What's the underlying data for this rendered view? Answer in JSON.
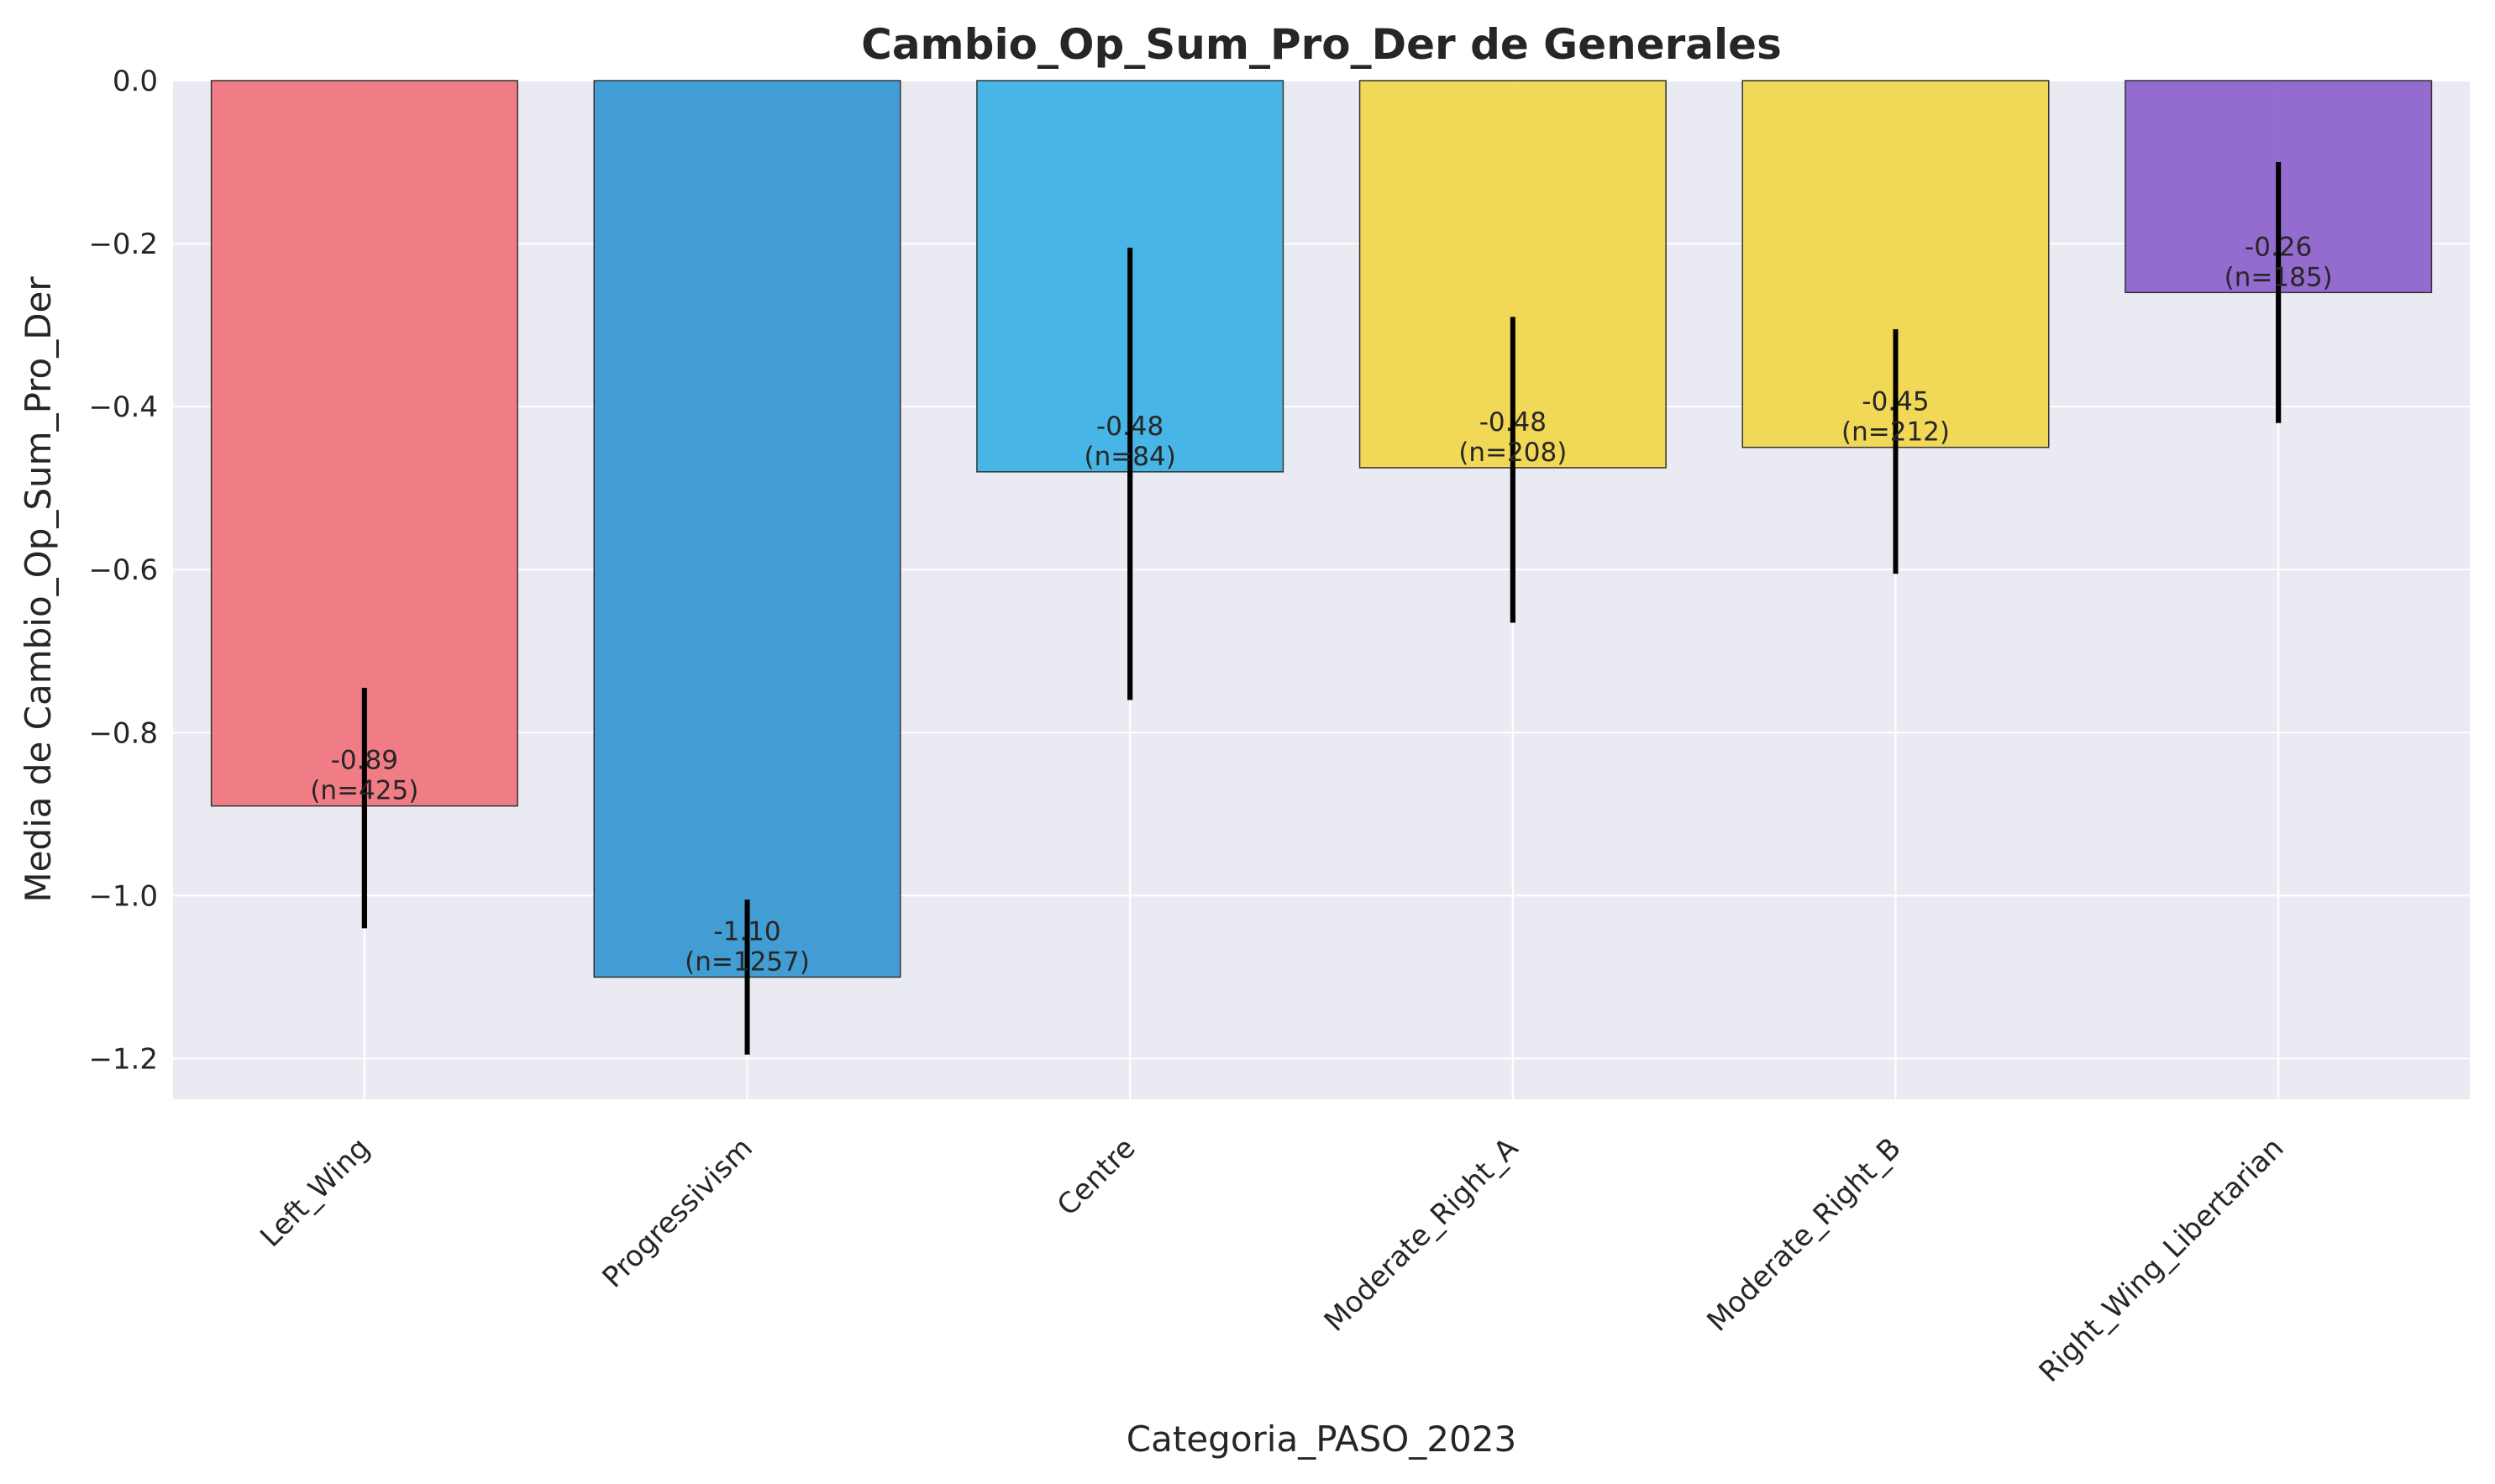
{
  "chart_data": {
    "type": "bar",
    "title": "Cambio_Op_Sum_Pro_Der de Generales",
    "xlabel": "Categoria_PASO_2023",
    "ylabel": "Media de Cambio_Op_Sum_Pro_Der",
    "ylim": [
      -1.25,
      0.0
    ],
    "yticks": [
      0.0,
      -0.2,
      -0.4,
      -0.6,
      -0.8,
      -1.0,
      -1.2
    ],
    "ytick_labels": [
      "0.0",
      "−0.2",
      "−0.4",
      "−0.6",
      "−0.8",
      "−1.0",
      "−1.2"
    ],
    "grid": true,
    "categories": [
      "Left_Wing",
      "Progressivism",
      "Centre",
      "Moderate_Right_A",
      "Moderate_Right_B",
      "Right_Wing_Libertarian"
    ],
    "values": [
      -0.89,
      -1.1,
      -0.48,
      -0.475,
      -0.45,
      -0.26
    ],
    "error_low": [
      -1.04,
      -1.195,
      -0.76,
      -0.665,
      -0.605,
      -0.42
    ],
    "error_high": [
      -0.745,
      -1.005,
      -0.205,
      -0.29,
      -0.305,
      -0.1
    ],
    "labels": [
      {
        "value": "-0.89",
        "n": "(n=425)"
      },
      {
        "value": "-1.10",
        "n": "(n=1257)"
      },
      {
        "value": "-0.48",
        "n": "(n=84)"
      },
      {
        "value": "-0.48",
        "n": "(n=208)"
      },
      {
        "value": "-0.45",
        "n": "(n=212)"
      },
      {
        "value": "-0.26",
        "n": "(n=185)"
      }
    ],
    "colors": [
      "#f0727c",
      "#3496d2",
      "#38b0e4",
      "#f2d64a",
      "#f2d64a",
      "#8c5fcb"
    ],
    "background": "#eaeaf2"
  }
}
